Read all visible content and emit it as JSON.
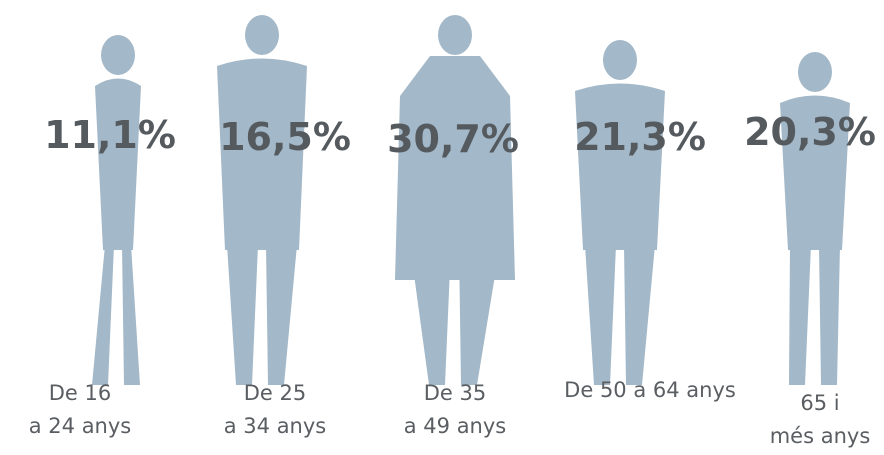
{
  "chart_data": {
    "type": "pictogram",
    "categories": [
      "De 16\na 24 anys",
      "De 25\na 34 anys",
      "De 35\na 49 anys",
      "De 50 a 64 anys",
      "65 i\nmés anys"
    ],
    "values": [
      11.1,
      16.5,
      30.7,
      21.3,
      20.3
    ],
    "value_labels": [
      "11,1%",
      "16,5%",
      "30,7%",
      "21,3%",
      "20,3%"
    ],
    "color": "#a3b8c8"
  }
}
